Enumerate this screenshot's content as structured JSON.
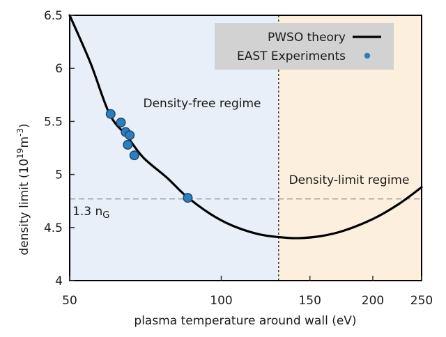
{
  "chart_data": {
    "type": "line",
    "title": "",
    "xlabel": "plasma temperature around wall (eV)",
    "ylabel": "density limit (10^19 m^-3)",
    "ylabel_parts": [
      {
        "t": "density limit (10",
        "v": "base"
      },
      {
        "t": "19",
        "v": "sup"
      },
      {
        "t": "m",
        "v": "base"
      },
      {
        "t": "-3",
        "v": "sup"
      },
      {
        "t": ")",
        "v": "base"
      }
    ],
    "x_scale": "log",
    "xlim": [
      50,
      250
    ],
    "ylim": [
      4,
      6.5
    ],
    "x_ticks": [
      50,
      100,
      150,
      200,
      250
    ],
    "y_ticks": [
      4,
      4.5,
      5,
      5.5,
      6,
      6.5
    ],
    "grid": false,
    "legend": {
      "position": "top-right",
      "background": "#d2d2d2",
      "entries": [
        {
          "label": "PWSO theory",
          "marker": "line",
          "color": "#000000"
        },
        {
          "label": "EAST Experiments",
          "marker": "dot",
          "color": "#2e7ebc"
        }
      ]
    },
    "series": [
      {
        "name": "PWSO theory",
        "type": "line",
        "color": "#000000",
        "width": 3.2,
        "points": [
          [
            50,
            6.5
          ],
          [
            55,
            6.05
          ],
          [
            60,
            5.57
          ],
          [
            65,
            5.36
          ],
          [
            70,
            5.16
          ],
          [
            78,
            4.97
          ],
          [
            85,
            4.8
          ],
          [
            95,
            4.63
          ],
          [
            105,
            4.52
          ],
          [
            118,
            4.44
          ],
          [
            130,
            4.41
          ],
          [
            142,
            4.4
          ],
          [
            158,
            4.42
          ],
          [
            175,
            4.47
          ],
          [
            200,
            4.58
          ],
          [
            225,
            4.72
          ],
          [
            250,
            4.88
          ]
        ]
      },
      {
        "name": "EAST Experiments",
        "type": "scatter",
        "color": "#2e7ebc",
        "edge_color": "#16456b",
        "marker_radius": 6.3,
        "points": [
          [
            60.3,
            5.57
          ],
          [
            63.2,
            5.49
          ],
          [
            64.6,
            5.4
          ],
          [
            65.8,
            5.37
          ],
          [
            65.2,
            5.28
          ],
          [
            67.2,
            5.18
          ],
          [
            85.8,
            4.78
          ]
        ]
      }
    ],
    "regions": [
      {
        "label": "Density-free regime",
        "x0": 50,
        "x1": 130,
        "background": "#e9eff8",
        "label_color": "#3e7fb2"
      },
      {
        "label": "Density-limit regime",
        "x0": 130,
        "x1": 250,
        "background": "#fcefdd",
        "label_color": "#c65d1e"
      }
    ],
    "reference_lines": [
      {
        "axis": "x",
        "value": 130,
        "style": "dotted",
        "color": "#333333"
      },
      {
        "axis": "y",
        "value": 4.77,
        "style": "dashed",
        "color": "#999999",
        "label": "1.3 n_G",
        "label_parts": [
          {
            "t": "1.3 n",
            "v": "base"
          },
          {
            "t": "G",
            "v": "sub"
          }
        ],
        "label_color": "#33738f"
      }
    ]
  }
}
